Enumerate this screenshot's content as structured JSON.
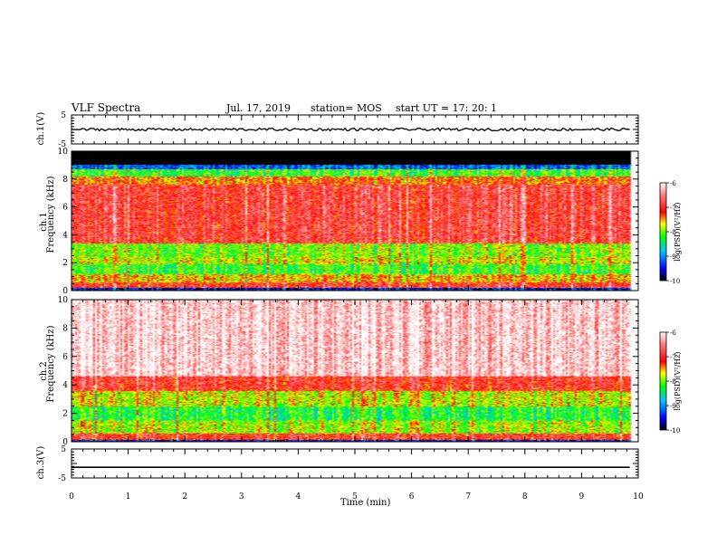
{
  "header": {
    "title": "VLF Spectra",
    "date": "Jul. 17, 2019",
    "station": "station= MOS",
    "start_ut": "start UT = 17: 20: 1"
  },
  "chart_data": [
    {
      "type": "line",
      "panel": "ch1_voltage",
      "ylabel": "ch.1(V)",
      "ylim": [
        -5,
        5
      ],
      "y_ticks": [
        "5",
        "-5"
      ],
      "xlim": [
        0,
        10
      ],
      "series": [
        {
          "x": [
            0,
            9.85
          ],
          "y": [
            0,
            0
          ]
        }
      ]
    },
    {
      "type": "heatmap",
      "panel": "ch1_spectrogram",
      "ylabel_top": "ch.1",
      "ylabel": "Frequency (kHz)",
      "ylim": [
        0,
        10
      ],
      "y_ticks": [
        "0",
        "2",
        "4",
        "6",
        "8",
        "10"
      ],
      "xlim": [
        0,
        10
      ],
      "data_x_end_min": 9.85,
      "bands_khz": [
        {
          "from": 0.0,
          "to": 0.2,
          "level": -9.5
        },
        {
          "from": 0.2,
          "to": 0.6,
          "level": -7.0
        },
        {
          "from": 0.6,
          "to": 1.2,
          "level": -7.6
        },
        {
          "from": 1.2,
          "to": 1.9,
          "level": -8.2
        },
        {
          "from": 1.9,
          "to": 2.4,
          "level": -7.8
        },
        {
          "from": 2.4,
          "to": 3.4,
          "level": -8.0
        },
        {
          "from": 3.4,
          "to": 7.6,
          "level": -6.9
        },
        {
          "from": 7.6,
          "to": 8.2,
          "level": -7.4
        },
        {
          "from": 8.2,
          "to": 8.7,
          "level": -8.2
        },
        {
          "from": 8.7,
          "to": 9.0,
          "level": -9.2
        },
        {
          "from": 9.0,
          "to": 10.0,
          "level": -10.0
        }
      ],
      "colorbar": {
        "label": "log(PSD)(V²/Hz)",
        "range": [
          -10,
          -6
        ],
        "ticks": [
          "-6",
          "-7",
          "-8",
          "-9",
          "-10"
        ]
      }
    },
    {
      "type": "heatmap",
      "panel": "ch2_spectrogram",
      "ylabel_top": "ch.2",
      "ylabel": "Frequency (kHz)",
      "ylim": [
        0,
        10
      ],
      "y_ticks": [
        "0",
        "2",
        "4",
        "6",
        "8",
        "10"
      ],
      "xlim": [
        0,
        10
      ],
      "data_x_end_min": 9.85,
      "bands_khz": [
        {
          "from": 0.0,
          "to": 0.15,
          "level": -9.5
        },
        {
          "from": 0.15,
          "to": 0.6,
          "level": -7.0
        },
        {
          "from": 0.6,
          "to": 1.5,
          "level": -7.9
        },
        {
          "from": 1.5,
          "to": 2.5,
          "level": -8.3
        },
        {
          "from": 2.5,
          "to": 3.6,
          "level": -7.8
        },
        {
          "from": 3.6,
          "to": 4.6,
          "level": -7.0
        },
        {
          "from": 4.6,
          "to": 10.0,
          "level": -6.2
        }
      ],
      "colorbar": {
        "label": "log(PSD)(V²/Hz)",
        "range": [
          -10,
          -6
        ],
        "ticks": [
          "-6",
          "-7",
          "-8",
          "-9",
          "-10"
        ]
      }
    },
    {
      "type": "line",
      "panel": "ch3_voltage",
      "ylabel": "ch.3(V)",
      "ylim": [
        -5,
        5
      ],
      "y_ticks": [
        "5",
        "-5"
      ],
      "xlim": [
        0,
        10
      ],
      "xlabel": "Time (min)",
      "x_ticks": [
        "0",
        "1",
        "2",
        "3",
        "4",
        "5",
        "6",
        "7",
        "8",
        "9",
        "10"
      ],
      "series": [
        {
          "x": [
            0,
            9.85
          ],
          "y": [
            -1.3,
            -1.3
          ]
        }
      ]
    }
  ],
  "colors": {
    "colormap": [
      "#000000",
      "#0000ff",
      "#00c8ff",
      "#00ff00",
      "#ffff00",
      "#ff0000",
      "#ffffff"
    ],
    "axes": "#000000"
  }
}
